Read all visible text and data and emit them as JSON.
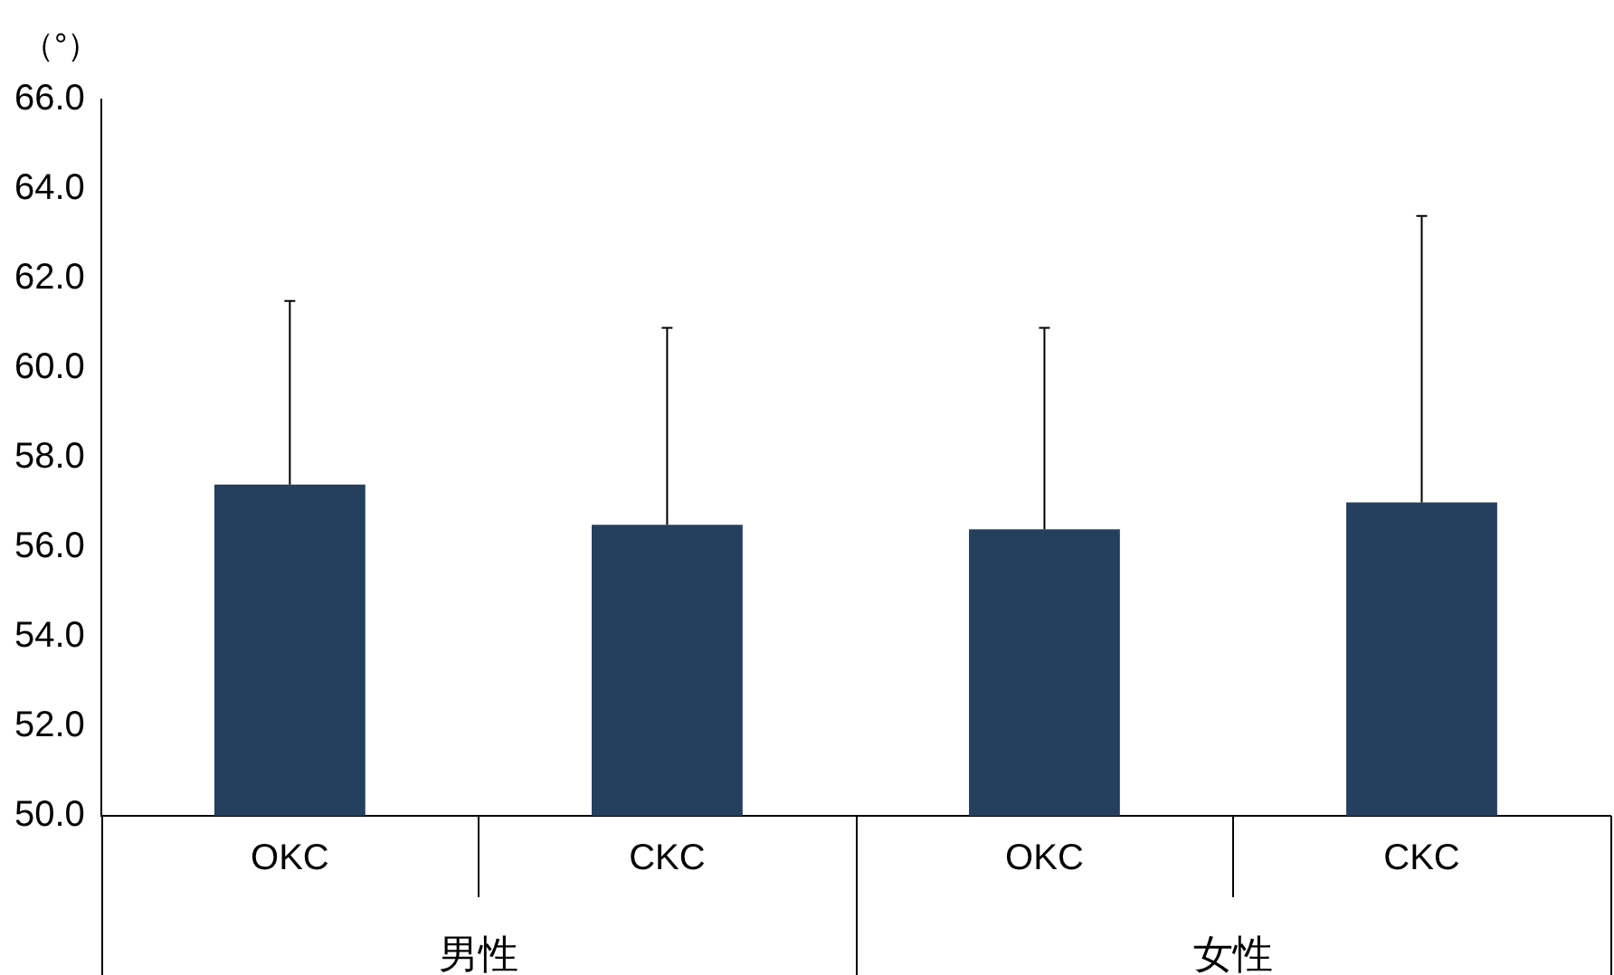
{
  "chart_data": {
    "type": "bar",
    "ylabel": "（°）",
    "categories": [
      "OKC",
      "CKC",
      "OKC",
      "CKC"
    ],
    "values": [
      57.4,
      56.5,
      56.4,
      57.0
    ],
    "color": "#253f5f",
    "errors": [
      [
        57.4,
        61.5
      ],
      [
        56.5,
        60.9
      ],
      [
        56.4,
        60.9
      ],
      [
        57.0,
        63.4
      ]
    ],
    "ylim": [
      50,
      66
    ],
    "yticks": [
      {
        "value": 50,
        "label": "50.0"
      },
      {
        "value": 52,
        "label": "52.0"
      },
      {
        "value": 54,
        "label": "54.0"
      },
      {
        "value": 56,
        "label": "56.0"
      },
      {
        "value": 58,
        "label": "58.0"
      },
      {
        "value": 60,
        "label": "60.0"
      },
      {
        "value": 62,
        "label": "62.0"
      },
      {
        "value": 64,
        "label": "64.0"
      },
      {
        "value": 66,
        "label": "66.0"
      }
    ],
    "annotations": [
      "男性",
      "女性"
    ],
    "grid": false,
    "legend": false
  }
}
